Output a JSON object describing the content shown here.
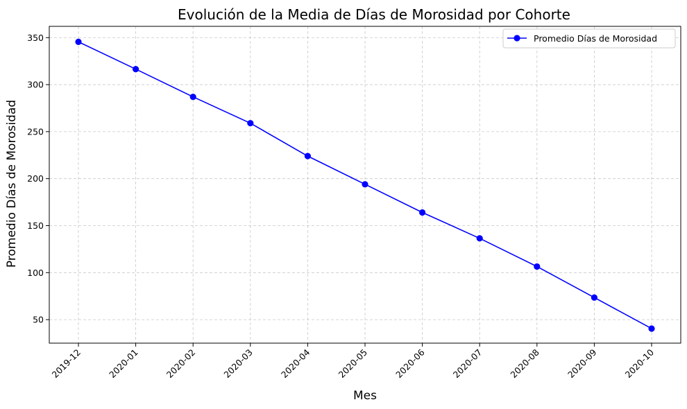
{
  "chart_data": {
    "type": "line",
    "title": "Evolución de la Media de Días de Morosidad por Cohorte",
    "xlabel": "Mes",
    "ylabel": "Promedio Días de Morosidad",
    "categories": [
      "2019-12",
      "2020-01",
      "2020-02",
      "2020-03",
      "2020-04",
      "2020-05",
      "2020-06",
      "2020-07",
      "2020-08",
      "2020-09",
      "2020-10"
    ],
    "series": [
      {
        "name": "Promedio Días de Morosidad",
        "color": "#0000ff",
        "marker": "circle",
        "values": [
          345.5,
          316.5,
          287,
          259,
          224,
          194,
          164,
          136.5,
          106.5,
          73.5,
          40.5
        ]
      }
    ],
    "ylim": [
      25,
      362
    ],
    "yticks": [
      50,
      100,
      150,
      200,
      250,
      300,
      350
    ],
    "grid": true,
    "grid_style": "dashed",
    "legend_position": "top-right"
  }
}
